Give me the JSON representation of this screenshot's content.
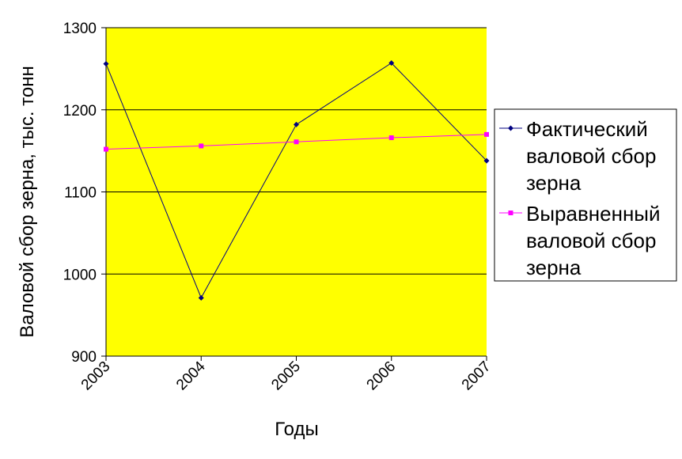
{
  "chart_data": {
    "type": "line",
    "title": "",
    "xlabel": "Годы",
    "ylabel": "Валовой сбор зерна, тыс. тонн",
    "categories": [
      "2003",
      "2004",
      "2005",
      "2006",
      "2007"
    ],
    "ylim": [
      900,
      1300
    ],
    "yticks": [
      "900",
      "1000",
      "1100",
      "1200",
      "1300"
    ],
    "grid": true,
    "legend_position": "right",
    "plot_background": "#ffff00",
    "series": [
      {
        "name": "Фактический валовой сбор зерна",
        "legend_lines": [
          "Фактический",
          "валовой сбор",
          "зерна"
        ],
        "values": [
          1256,
          971,
          1182,
          1257,
          1138
        ],
        "color": "#000080",
        "marker": "diamond"
      },
      {
        "name": "Выравненный валовой сбор зерна",
        "legend_lines": [
          "Выравненный",
          "валовой сбор",
          "зерна"
        ],
        "values": [
          1152,
          1156,
          1161,
          1166,
          1170
        ],
        "color": "#ff00ff",
        "marker": "square"
      }
    ]
  }
}
